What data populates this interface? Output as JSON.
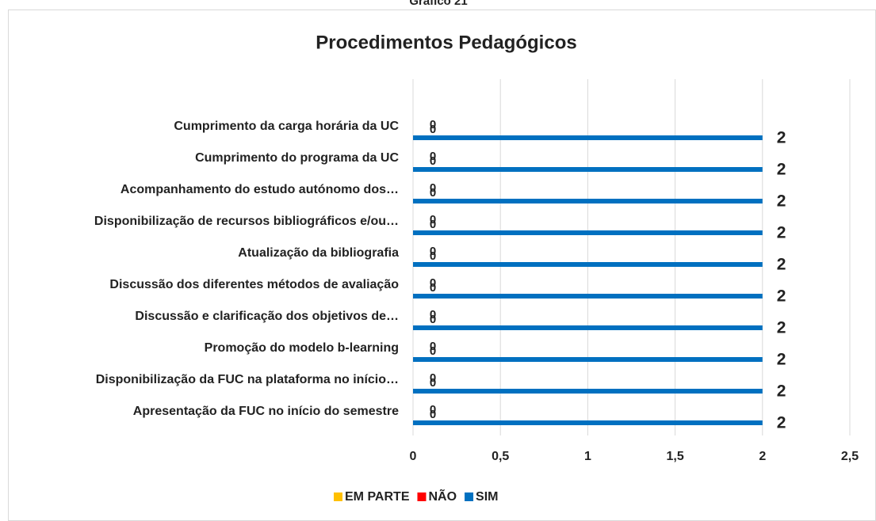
{
  "chart_data": {
    "type": "bar",
    "orientation": "horizontal",
    "caption": "Gráfico 21",
    "title": "Procedimentos Pedagógicos",
    "categories": [
      "Cumprimento da carga horária da UC",
      "Cumprimento do programa da UC",
      "Acompanhamento do estudo autónomo dos…",
      "Disponibilização de recursos bibliográficos e/ou…",
      "Atualização da bibliografia",
      "Discussão dos diferentes métodos de avaliação",
      "Discussão e clarificação dos objetivos de…",
      "Promoção do modelo b-learning",
      "Disponibilização da FUC na plataforma no início…",
      "Apresentação da FUC no início do semestre"
    ],
    "series": [
      {
        "name": "EM PARTE",
        "color": "#ffc000",
        "values": [
          0,
          0,
          0,
          0,
          0,
          0,
          0,
          0,
          0,
          0
        ]
      },
      {
        "name": "NÃO",
        "color": "#ff0000",
        "values": [
          0,
          0,
          0,
          0,
          0,
          0,
          0,
          0,
          0,
          0
        ]
      },
      {
        "name": "SIM",
        "color": "#0070c0",
        "values": [
          2,
          2,
          2,
          2,
          2,
          2,
          2,
          2,
          2,
          2
        ]
      }
    ],
    "xlim": [
      0,
      2.5
    ],
    "xticks": [
      0,
      {
        "value": 0.5,
        "label": "0,5"
      },
      1,
      {
        "value": 1.5,
        "label": "1,5"
      },
      2,
      {
        "value": 2.5,
        "label": "2,5"
      }
    ],
    "grid": true,
    "legend": "bottom"
  }
}
